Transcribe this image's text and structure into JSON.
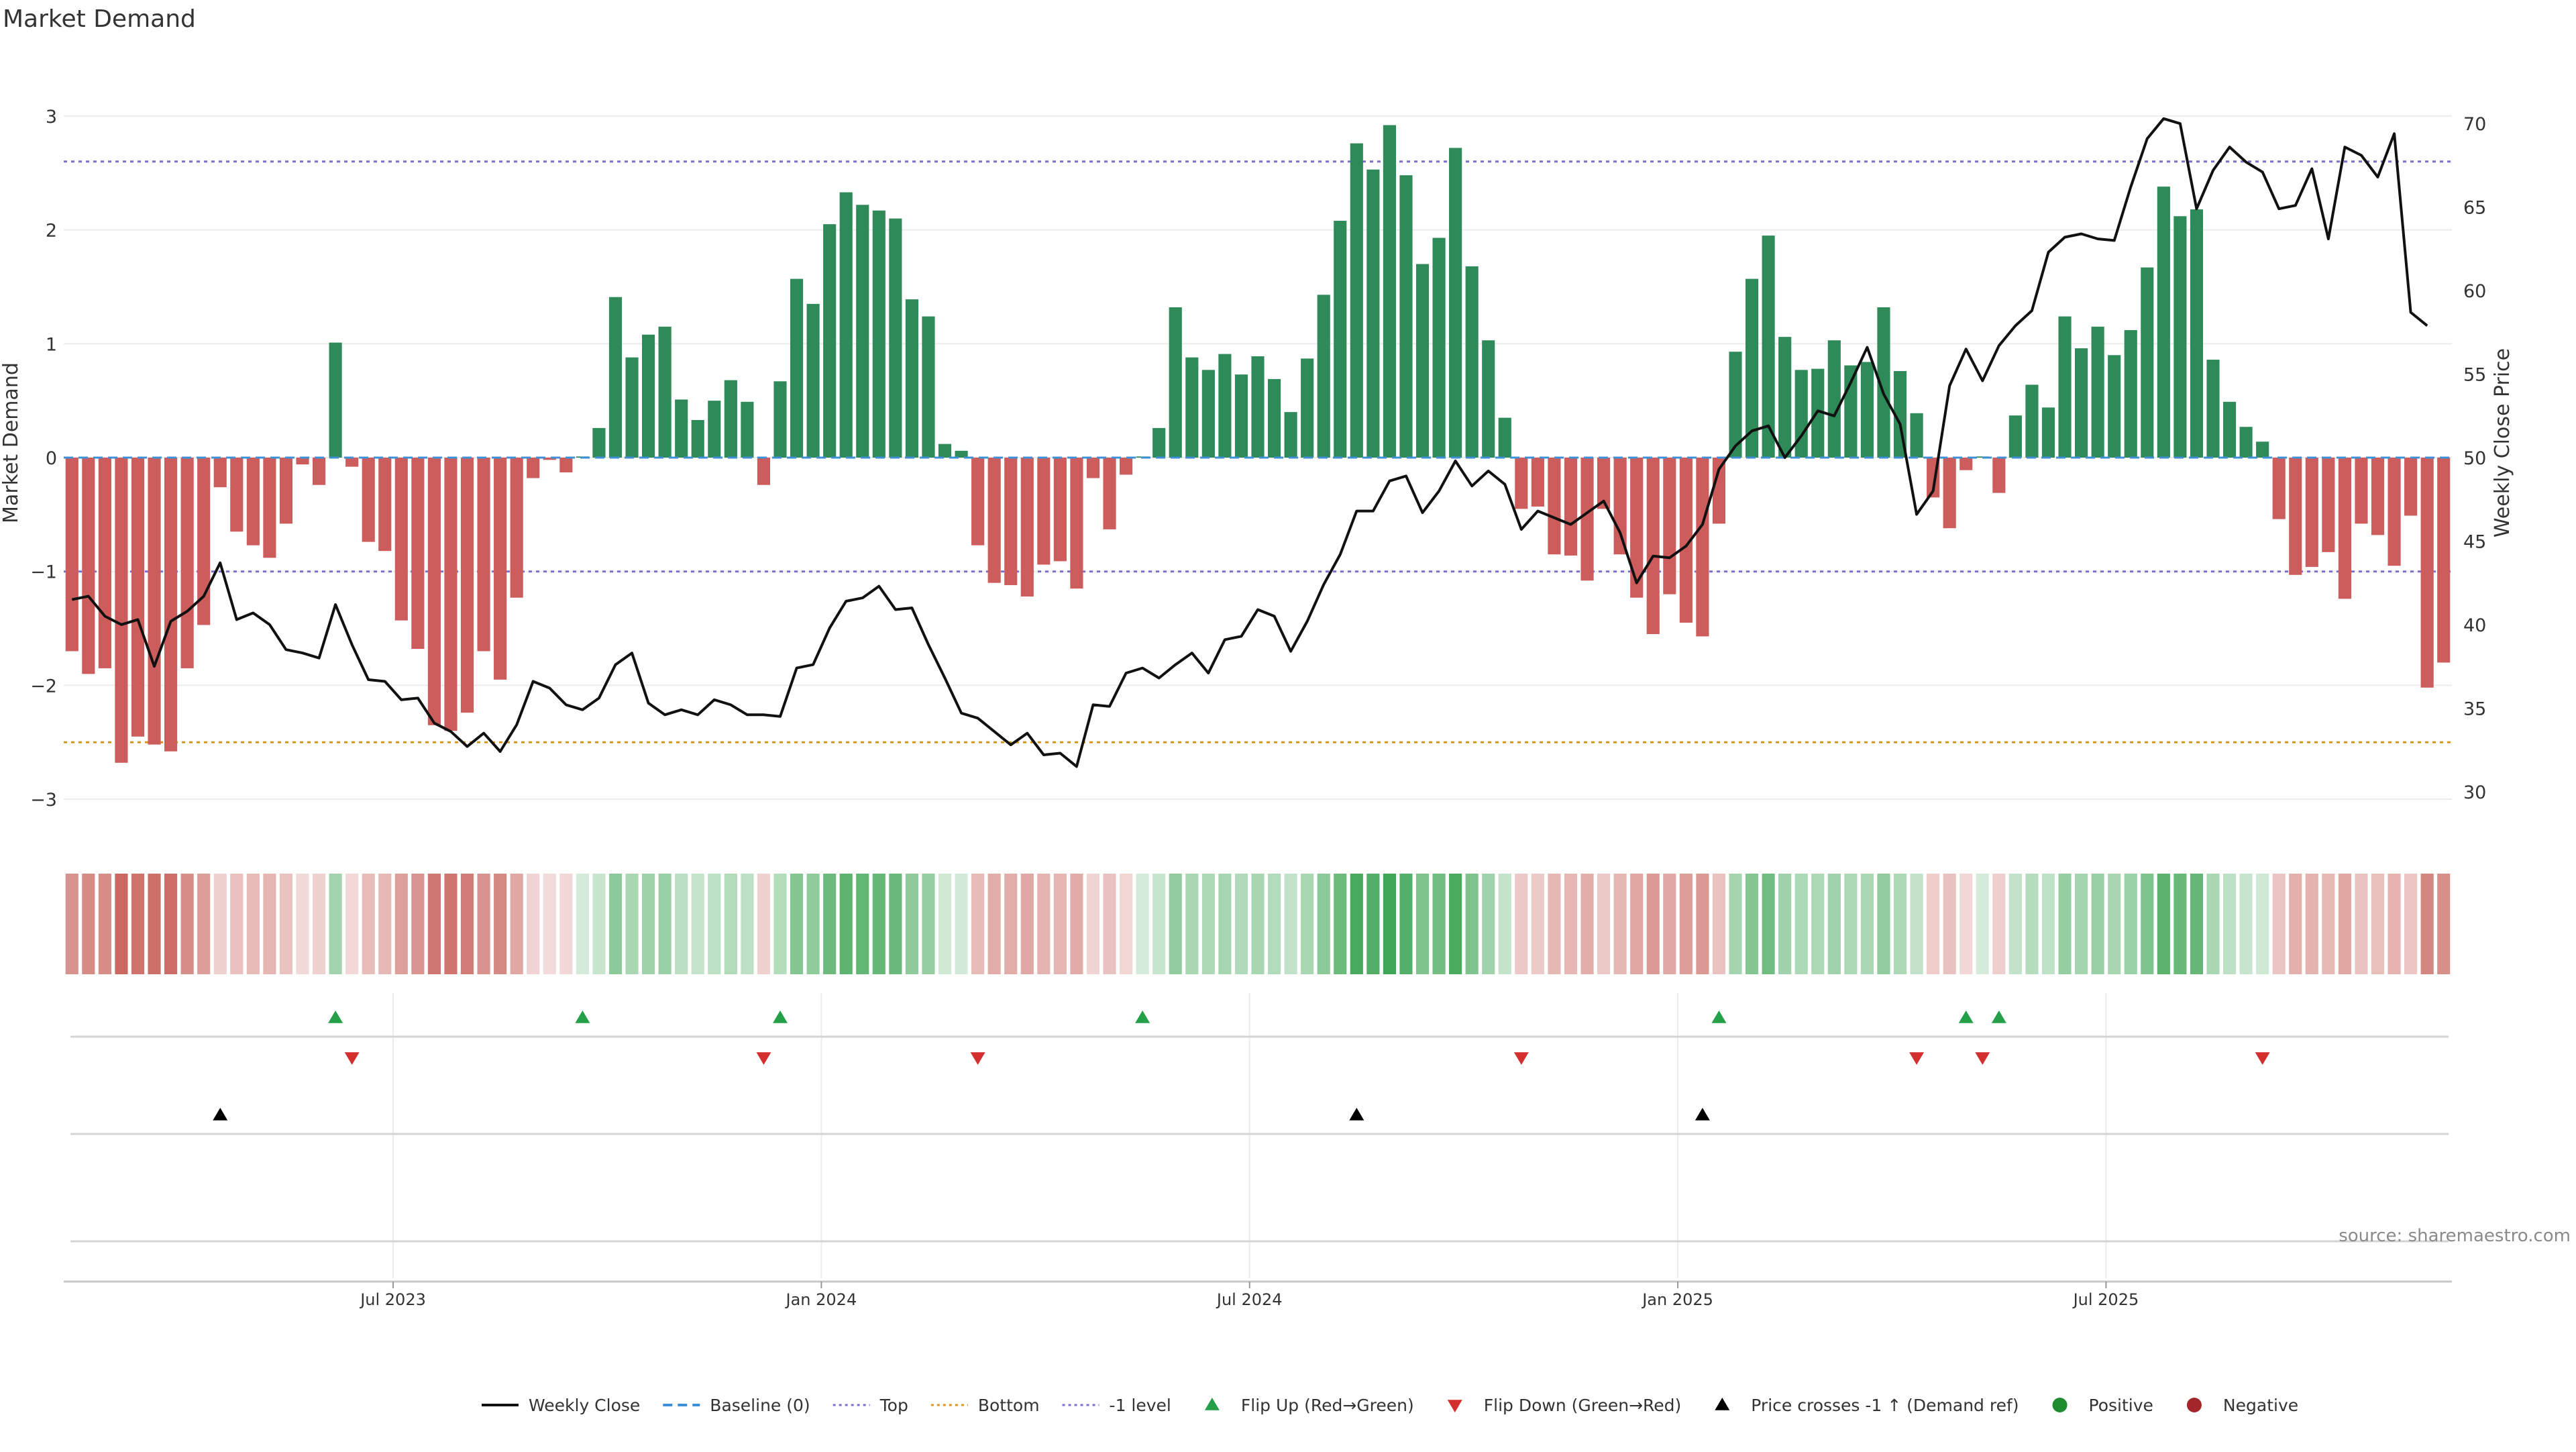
{
  "chart_data": {
    "type": "bar",
    "title": "Market Demand",
    "ylabel": "Market Demand",
    "y2label": "Weekly Close Price",
    "ylim": [
      -3.3,
      3.3
    ],
    "y2lim": [
      27.5,
      72.5
    ],
    "yticks": [
      {
        "v": 3,
        "label": "3"
      },
      {
        "v": 2,
        "label": "2"
      },
      {
        "v": 1,
        "label": "1"
      },
      {
        "v": 0,
        "label": "0"
      },
      {
        "v": -1,
        "label": "−1"
      },
      {
        "v": -2,
        "label": "−2"
      },
      {
        "v": -3,
        "label": "−3"
      }
    ],
    "y2ticks": [
      {
        "v": 70,
        "label": "70"
      },
      {
        "v": 65,
        "label": "65"
      },
      {
        "v": 60,
        "label": "60"
      },
      {
        "v": 55,
        "label": "55"
      },
      {
        "v": 50,
        "label": "50"
      },
      {
        "v": 45,
        "label": "45"
      },
      {
        "v": 40,
        "label": "40"
      },
      {
        "v": 35,
        "label": "35"
      },
      {
        "v": 30,
        "label": "30"
      }
    ],
    "x_date_ticks": [
      {
        "i": 20,
        "label": "Jul 2023"
      },
      {
        "i": 46,
        "label": "Jan 2024"
      },
      {
        "i": 72,
        "label": "Jul 2024"
      },
      {
        "i": 98,
        "label": "Jan 2025"
      },
      {
        "i": 124,
        "label": "Jul 2025"
      }
    ],
    "reference_lines": [
      {
        "name": "Top",
        "value": 2.6,
        "color": "#7b6fd0"
      },
      {
        "name": "Bottom",
        "value": -2.5,
        "color": "#d9961e"
      },
      {
        "name": "-1 level",
        "value": -1,
        "color": "#7b6fd0"
      }
    ],
    "demand": [
      -1.7,
      -1.9,
      -1.85,
      -2.68,
      -2.45,
      -2.52,
      -2.58,
      -1.85,
      -1.47,
      -0.26,
      -0.65,
      -0.77,
      -0.88,
      -0.58,
      -0.06,
      -0.24,
      1.01,
      -0.08,
      -0.74,
      -0.82,
      -1.43,
      -1.68,
      -2.35,
      -2.4,
      -2.24,
      -1.7,
      -1.95,
      -1.23,
      -0.18,
      -0.02,
      -0.13,
      0.01,
      0.26,
      1.41,
      0.88,
      1.08,
      1.15,
      0.51,
      0.33,
      0.5,
      0.68,
      0.49,
      -0.24,
      0.67,
      1.57,
      1.35,
      2.05,
      2.33,
      2.22,
      2.17,
      2.1,
      1.39,
      1.24,
      0.12,
      0.06,
      -0.77,
      -1.1,
      -1.12,
      -1.22,
      -0.94,
      -0.91,
      -1.15,
      -0.18,
      -0.63,
      -0.15,
      0.01,
      0.26,
      1.32,
      0.88,
      0.77,
      0.91,
      0.73,
      0.89,
      0.69,
      0.4,
      0.87,
      1.43,
      2.08,
      2.76,
      2.53,
      2.92,
      2.48,
      1.7,
      1.93,
      2.72,
      1.68,
      1.03,
      0.35,
      -0.45,
      -0.43,
      -0.85,
      -0.86,
      -1.08,
      -0.45,
      -0.85,
      -1.23,
      -1.55,
      -1.2,
      -1.45,
      -1.57,
      -0.58,
      0.93,
      1.57,
      1.95,
      1.06,
      0.77,
      0.78,
      1.03,
      0.81,
      0.84,
      1.32,
      0.76,
      0.39,
      -0.35,
      -0.62,
      -0.11,
      0.01,
      -0.31,
      0.37,
      0.64,
      0.44,
      1.24,
      0.96,
      1.15,
      0.9,
      1.12,
      1.67,
      2.38,
      2.12,
      2.18,
      0.86,
      0.49,
      0.27,
      0.14,
      -0.54,
      -1.03,
      -0.96,
      -0.83,
      -1.24,
      -0.58,
      -0.68,
      -0.95,
      -0.51,
      -2.02,
      -1.8
    ],
    "weekly_close": [
      41.5,
      41.7,
      40.5,
      40,
      40.3,
      37.5,
      40.2,
      40.8,
      41.7,
      43.7,
      40.3,
      40.7,
      40,
      38.5,
      38.3,
      38,
      41.2,
      38.8,
      36.7,
      36.6,
      35.5,
      35.6,
      34.1,
      33.6,
      32.7,
      33.5,
      32.4,
      34,
      36.6,
      36.2,
      35.2,
      34.9,
      35.6,
      37.6,
      38.3,
      35.3,
      34.6,
      34.9,
      34.6,
      35.5,
      35.2,
      34.6,
      34.6,
      34.5,
      37.4,
      37.6,
      39.8,
      41.4,
      41.6,
      42.3,
      40.9,
      41,
      38.8,
      36.8,
      34.7,
      34.4,
      33.6,
      32.8,
      33.5,
      32.2,
      32.3,
      31.5,
      35.2,
      35.1,
      37.1,
      37.4,
      36.8,
      37.6,
      38.3,
      37.1,
      39.1,
      39.3,
      40.9,
      40.5,
      38.4,
      40.2,
      42.4,
      44.2,
      46.8,
      46.8,
      48.6,
      48.9,
      46.7,
      48,
      49.8,
      48.3,
      49.2,
      48.4,
      45.7,
      46.8,
      46.4,
      46,
      46.7,
      47.4,
      45.5,
      42.5,
      44.1,
      44,
      44.7,
      46,
      49.3,
      50.7,
      51.6,
      51.9,
      50,
      51.3,
      52.8,
      52.5,
      54.5,
      56.6,
      53.8,
      52,
      46.6,
      48,
      54.3,
      56.5,
      54.6,
      56.7,
      57.9,
      58.8,
      62.3,
      63.2,
      63.4,
      63.1,
      63,
      66.2,
      69.1,
      70.3,
      70,
      64.9,
      67.2,
      68.6,
      67.7,
      67.1,
      64.9,
      65.1,
      67.3,
      63.1,
      68.6,
      68.1,
      66.8,
      69.4,
      58.7,
      57.9
    ],
    "heat_row": {
      "label": "",
      "positive_color": "#2e9e46",
      "negative_color": "#c25149"
    },
    "flip_up_idx": [
      16,
      31,
      43,
      65,
      100,
      115,
      117
    ],
    "flip_down_idx": [
      17,
      42,
      55,
      88,
      112,
      116,
      133
    ],
    "price_cross_idx": [
      9,
      78,
      99
    ],
    "legend": [
      {
        "key": "weekly_close",
        "label": "Weekly Close",
        "kind": "line",
        "color": "#111111"
      },
      {
        "key": "baseline",
        "label": "Baseline (0)",
        "kind": "dash",
        "color": "#3d8fd6"
      },
      {
        "key": "top",
        "label": "Top",
        "kind": "dot",
        "color": "#7b6fd0"
      },
      {
        "key": "bottom",
        "label": "Bottom",
        "kind": "dot",
        "color": "#d9961e"
      },
      {
        "key": "minus1",
        "label": "-1 level",
        "kind": "dot",
        "color": "#7b6fd0"
      },
      {
        "key": "flip_up",
        "label": "Flip Up (Red→Green)",
        "kind": "tri-up",
        "color": "#24a048"
      },
      {
        "key": "flip_down",
        "label": "Flip Down (Green→Red)",
        "kind": "tri-down",
        "color": "#d32f2f"
      },
      {
        "key": "cross",
        "label": "Price crosses -1 ↑ (Demand ref)",
        "kind": "tri-up",
        "color": "#000000"
      },
      {
        "key": "positive",
        "label": "Positive",
        "kind": "circle",
        "color": "#1e8b2e"
      },
      {
        "key": "negative",
        "label": "Negative",
        "kind": "circle",
        "color": "#a3262a"
      }
    ],
    "source": "source: sharemaestro.com",
    "colors": {
      "pos_bar": "#2e8a58",
      "neg_bar": "#cd5d5c",
      "line": "#111111",
      "baseline": "#3d8fd6"
    }
  }
}
